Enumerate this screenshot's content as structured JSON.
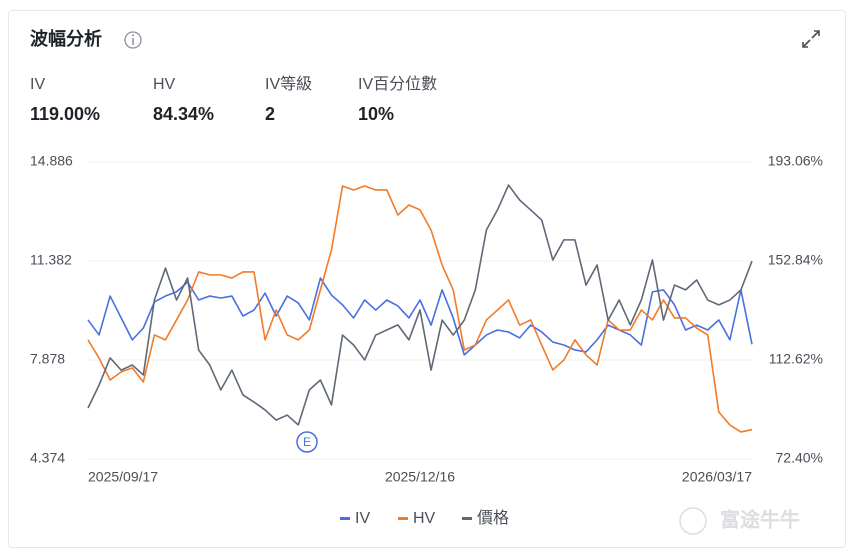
{
  "header": {
    "title": "波幅分析"
  },
  "stats": [
    {
      "label": "IV",
      "value": "119.00%"
    },
    {
      "label": "HV",
      "value": "84.34%"
    },
    {
      "label": "IV等級",
      "value": "2"
    },
    {
      "label": "IV百分位數",
      "value": "10%"
    }
  ],
  "chart_data": {
    "type": "line",
    "categories": [
      "2025/09/17",
      null,
      null,
      null,
      null,
      null,
      null,
      null,
      null,
      null,
      null,
      null,
      null,
      null,
      null,
      null,
      null,
      null,
      null,
      null,
      null,
      null,
      null,
      null,
      null,
      null,
      null,
      null,
      null,
      null,
      "2025/12/16",
      null,
      null,
      null,
      null,
      null,
      null,
      null,
      null,
      null,
      null,
      null,
      null,
      null,
      null,
      null,
      null,
      null,
      null,
      null,
      null,
      null,
      null,
      null,
      null,
      null,
      null,
      null,
      null,
      null,
      "2026/03/17"
    ],
    "ylim": [
      4.374,
      14.886
    ],
    "yticks": [
      4.374,
      7.878,
      11.382,
      14.886
    ],
    "y2lim": [
      72.4,
      193.06
    ],
    "y2ticks": [
      {
        "value": 72.4,
        "label": "72.40%"
      },
      {
        "value": 112.62,
        "label": "112.62%"
      },
      {
        "value": 152.84,
        "label": "152.84%"
      },
      {
        "value": 193.06,
        "label": "193.06%"
      }
    ],
    "grid": true,
    "series": [
      {
        "name": "IV",
        "color": "#4a6fe0",
        "axis": "y2",
        "values": [
          128.9,
          122.8,
          138.6,
          129.7,
          120.8,
          125.6,
          136.2,
          138.6,
          140.3,
          144.3,
          137.0,
          138.6,
          137.8,
          138.6,
          130.5,
          132.9,
          139.8,
          130.5,
          138.6,
          135.8,
          128.9,
          145.9,
          139.0,
          135.0,
          129.7,
          137.0,
          132.9,
          137.0,
          134.6,
          129.7,
          137.0,
          126.8,
          141.1,
          129.7,
          114.7,
          118.7,
          122.8,
          124.8,
          124.0,
          121.6,
          126.8,
          124.0,
          119.9,
          118.7,
          116.7,
          115.9,
          120.8,
          126.8,
          124.8,
          122.8,
          118.7,
          140.3,
          141.1,
          135.0,
          124.8,
          126.8,
          124.8,
          128.9,
          120.8,
          141.1,
          119.0
        ]
      },
      {
        "name": "HV",
        "color": "#f27b28",
        "axis": "y2",
        "values": [
          120.8,
          113.4,
          104.5,
          107.8,
          109.4,
          103.7,
          122.8,
          120.8,
          128.9,
          137.0,
          148.4,
          147.2,
          147.2,
          145.9,
          148.4,
          148.4,
          120.8,
          132.9,
          122.8,
          120.8,
          124.8,
          141.1,
          157.3,
          183.3,
          181.7,
          183.3,
          181.7,
          181.7,
          171.5,
          175.6,
          173.6,
          165.4,
          151.2,
          141.1,
          116.7,
          118.7,
          128.9,
          132.9,
          137.0,
          126.8,
          128.9,
          118.7,
          108.6,
          112.6,
          120.8,
          114.7,
          110.6,
          128.9,
          124.8,
          124.8,
          132.9,
          128.9,
          137.0,
          129.7,
          129.7,
          125.6,
          122.8,
          91.5,
          86.2,
          83.4,
          84.3
        ]
      },
      {
        "name": "價格",
        "color": "#5f6876",
        "values": [
          6.18,
          6.99,
          7.95,
          7.52,
          7.7,
          7.35,
          10.0,
          11.13,
          10.0,
          10.78,
          8.23,
          7.7,
          6.82,
          7.52,
          6.64,
          6.39,
          6.11,
          5.75,
          5.93,
          5.58,
          6.82,
          7.17,
          6.29,
          8.76,
          8.41,
          7.88,
          8.76,
          8.94,
          9.12,
          8.59,
          9.65,
          7.52,
          9.29,
          8.76,
          9.29,
          10.36,
          12.48,
          13.19,
          14.07,
          13.54,
          13.19,
          12.83,
          11.42,
          12.13,
          12.13,
          10.53,
          11.24,
          9.29,
          10.0,
          9.12,
          10.0,
          11.42,
          9.29,
          10.53,
          10.36,
          10.71,
          10.0,
          9.83,
          10.0,
          10.36,
          11.38
        ]
      }
    ],
    "annotations": [
      {
        "text": "E"
      }
    ]
  },
  "watermark": "富途牛牛"
}
